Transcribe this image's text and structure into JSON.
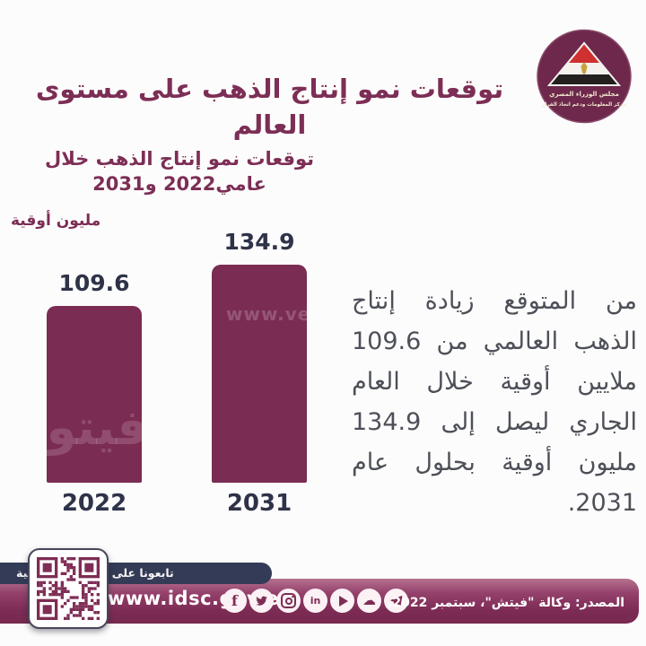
{
  "header": {
    "title": "توقعات نمو إنتاج الذهب على مستوى العالم",
    "logo": {
      "org_line1": "مجلس الوزراء المصري",
      "org_line2": "مركز المعلومات ودعم اتخاذ القرار"
    }
  },
  "chart": {
    "title_line1": "توقعات نمو إنتاج الذهب خلال",
    "title_line2": "عامي2022 و2031",
    "unit_label": "مليون أوقية"
  },
  "chart_data": {
    "type": "bar",
    "categories": [
      "2022",
      "2031"
    ],
    "values": [
      109.6,
      134.9
    ],
    "title": "توقعات نمو إنتاج الذهب خلال عامي2022 و2031",
    "xlabel": "",
    "ylabel": "مليون أوقية",
    "ylim": [
      0,
      150
    ],
    "grid": false,
    "legend": false,
    "bar_color": "#7b2c53",
    "value_labels": [
      "109.6",
      "134.9"
    ]
  },
  "body": {
    "paragraph": "من المتوقع زيادة إنتاج الذهب العالمي من 109.6 ملايين أوقية خلال العام الجاري ليصل إلى 134.9 مليون أوقية بحلول عام 2031."
  },
  "watermarks": {
    "url_fragment": "www.ve",
    "veto_logo": "فيتو"
  },
  "footer": {
    "follow_label": "تابعونا على المنصات الرقمية",
    "website": "www.idsc.gov.eg",
    "source": "المصدر: وكالة \"فيتش\"، سبتمبر 2022.",
    "social_icons": [
      "facebook",
      "twitter",
      "instagram",
      "linkedin",
      "youtube",
      "soundcloud",
      "telegram"
    ]
  },
  "colors": {
    "maroon": "#7b2c53",
    "navy_text": "#2e3349",
    "footer_navy": "#343b56",
    "paragraph_gray": "#4d5058"
  }
}
